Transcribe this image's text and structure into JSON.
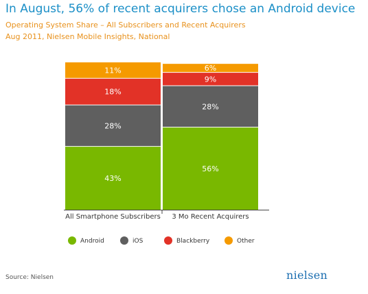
{
  "title": "In August, 56% of recent acquirers chose an Android device",
  "subtitle_line1": "Operating System Share – All Subscribers and Recent Acquirers",
  "subtitle_line2": "Aug 2011, Nielsen Mobile Insights, National",
  "source": "Source: Nielsen",
  "logo_text": "nielsen",
  "colors": {
    "Android": "#79b800",
    "iOS": "#5f5f5f",
    "Blackberry": "#e23227",
    "Other": "#f59a00"
  },
  "chart_data": {
    "type": "bar",
    "stacked": true,
    "categories": [
      "All Smartphone Subscribers",
      "3 Mo Recent Acquirers"
    ],
    "series": [
      {
        "name": "Android",
        "values": [
          43,
          56
        ],
        "labels": [
          "43%",
          "56%"
        ]
      },
      {
        "name": "iOS",
        "values": [
          28,
          28
        ],
        "labels": [
          "28%",
          "28%"
        ]
      },
      {
        "name": "Blackberry",
        "values": [
          18,
          9
        ],
        "labels": [
          "18%",
          "9%"
        ]
      },
      {
        "name": "Other",
        "values": [
          11,
          6
        ],
        "labels": [
          "11%",
          "6%"
        ]
      }
    ],
    "ylim": [
      0,
      100
    ],
    "grid": false,
    "legend": "bottom"
  }
}
